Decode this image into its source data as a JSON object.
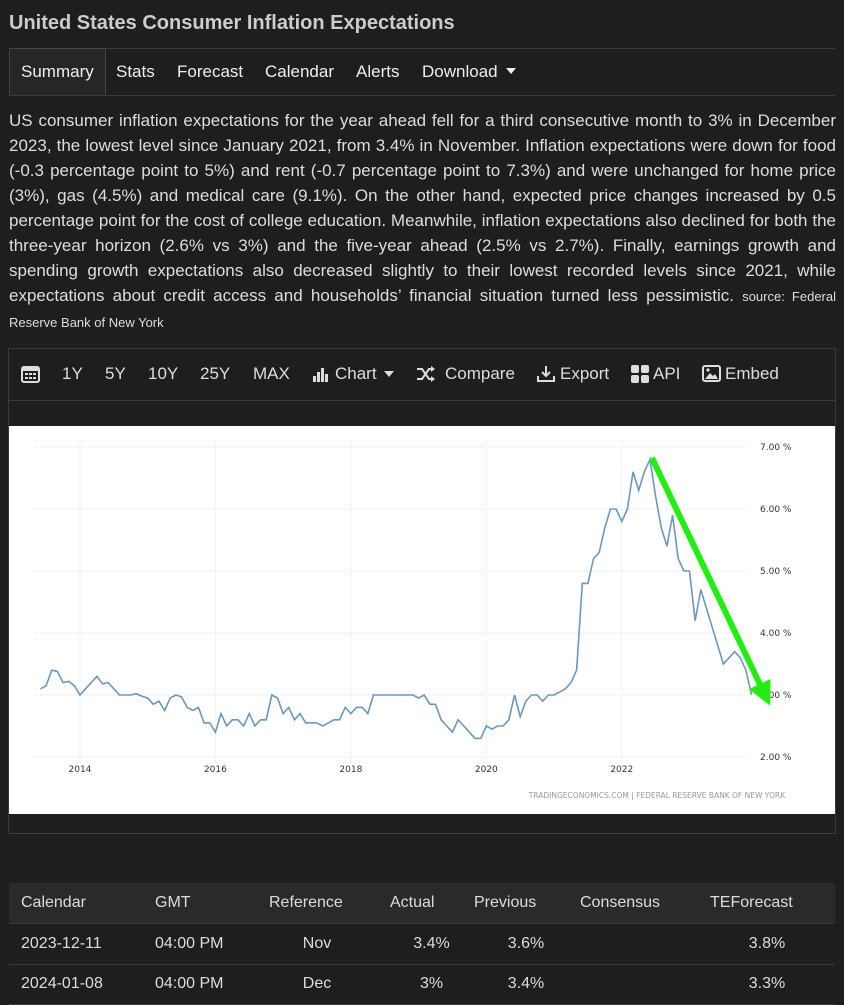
{
  "header": {
    "title": "United States Consumer Inflation Expectations"
  },
  "nav": [
    "Summary",
    "Stats",
    "Forecast",
    "Calendar",
    "Alerts",
    "Download"
  ],
  "description": {
    "text": "US consumer inflation expectations for the year ahead fell for a third consecutive month to 3% in December 2023, the lowest level since January 2021, from 3.4% in November. Inflation expectations were down for food (-0.3 percentage point to 5%) and rent (-0.7 percentage point to 7.3%) and were unchanged for home price (3%), gas (4.5%) and medical care (9.1%). On the other hand, expected price changes increased by 0.5 percentage point for the cost of college education. Meanwhile, inflation expectations also declined for both the three-year horizon (2.6% vs 3%) and the five-year ahead (2.5% vs 2.7%). Finally, earnings growth and spending growth expectations also decreased slightly to their lowest recorded levels since 2021, while expectations about credit access and households’ financial situation turned less pessimistic.",
    "source": "source: Federal Reserve Bank of New York"
  },
  "toolbar": [
    "1Y",
    "5Y",
    "10Y",
    "25Y",
    "MAX",
    "Chart",
    "Compare",
    "Export",
    "API",
    "Embed"
  ],
  "chart_data": {
    "type": "line",
    "watermark": "TRADINGECONOMICS.COM  |  FEDERAL RESERVE BANK OF NEW YORK",
    "color": "#6a97c0",
    "grid": true,
    "xlim": [
      2013.1,
      2024.1
    ],
    "xticks": [
      2014,
      2016,
      2018,
      2020,
      2022
    ],
    "ylim": [
      1.8,
      7.2
    ],
    "yticks": [
      {
        "value": 2,
        "label": "2.00 %"
      },
      {
        "value": 3,
        "label": "3.00 %"
      },
      {
        "value": 4,
        "label": "4.00 %"
      },
      {
        "value": 5,
        "label": "5.00 %"
      },
      {
        "value": 6,
        "label": "6.00 %"
      },
      {
        "value": 7,
        "label": "7.00 %"
      }
    ],
    "x": [
      2013.417,
      2013.5,
      2013.583,
      2013.667,
      2013.75,
      2013.833,
      2013.917,
      2014,
      2014.083,
      2014.167,
      2014.25,
      2014.333,
      2014.417,
      2014.5,
      2014.583,
      2014.667,
      2014.75,
      2014.833,
      2014.917,
      2015,
      2015.083,
      2015.167,
      2015.25,
      2015.333,
      2015.417,
      2015.5,
      2015.583,
      2015.667,
      2015.75,
      2015.833,
      2015.917,
      2016,
      2016.083,
      2016.167,
      2016.25,
      2016.333,
      2016.417,
      2016.5,
      2016.583,
      2016.667,
      2016.75,
      2016.833,
      2016.917,
      2017,
      2017.083,
      2017.167,
      2017.25,
      2017.333,
      2017.417,
      2017.5,
      2017.583,
      2017.667,
      2017.75,
      2017.833,
      2017.917,
      2018,
      2018.083,
      2018.167,
      2018.25,
      2018.333,
      2018.417,
      2018.5,
      2018.583,
      2018.667,
      2018.75,
      2018.833,
      2018.917,
      2019,
      2019.083,
      2019.167,
      2019.25,
      2019.333,
      2019.417,
      2019.5,
      2019.583,
      2019.667,
      2019.75,
      2019.833,
      2019.917,
      2020,
      2020.083,
      2020.167,
      2020.25,
      2020.333,
      2020.417,
      2020.5,
      2020.583,
      2020.667,
      2020.75,
      2020.833,
      2020.917,
      2021,
      2021.083,
      2021.167,
      2021.25,
      2021.333,
      2021.417,
      2021.5,
      2021.583,
      2021.667,
      2021.75,
      2021.833,
      2021.917,
      2022,
      2022.083,
      2022.167,
      2022.25,
      2022.333,
      2022.417,
      2022.5,
      2022.583,
      2022.667,
      2022.75,
      2022.833,
      2022.917,
      2023,
      2023.083,
      2023.167,
      2023.25,
      2023.333,
      2023.417,
      2023.5,
      2023.583,
      2023.667,
      2023.75,
      2023.833,
      2023.917
    ],
    "values": [
      3.1,
      3.15,
      3.4,
      3.38,
      3.2,
      3.22,
      3.15,
      3.0,
      3.1,
      3.2,
      3.3,
      3.18,
      3.2,
      3.1,
      3.0,
      3.0,
      3.0,
      3.02,
      2.98,
      2.95,
      2.85,
      2.9,
      2.75,
      2.95,
      3.0,
      2.97,
      2.8,
      2.75,
      2.8,
      2.55,
      2.55,
      2.4,
      2.7,
      2.5,
      2.6,
      2.6,
      2.5,
      2.7,
      2.5,
      2.6,
      2.6,
      3.0,
      2.95,
      2.7,
      2.8,
      2.6,
      2.7,
      2.55,
      2.55,
      2.55,
      2.5,
      2.55,
      2.6,
      2.6,
      2.8,
      2.7,
      2.8,
      2.8,
      2.7,
      3.0,
      3.0,
      3.0,
      3.0,
      3.0,
      3.0,
      3.0,
      3.0,
      2.95,
      3.0,
      2.85,
      2.85,
      2.6,
      2.5,
      2.4,
      2.6,
      2.5,
      2.4,
      2.3,
      2.3,
      2.5,
      2.45,
      2.5,
      2.5,
      2.6,
      3.0,
      2.65,
      2.9,
      3.0,
      3.0,
      2.9,
      3.0,
      3.0,
      3.05,
      3.1,
      3.2,
      3.4,
      4.8,
      4.8,
      5.2,
      5.3,
      5.7,
      6.0,
      6.0,
      5.8,
      6.0,
      6.6,
      6.3,
      6.6,
      6.8,
      6.2,
      5.7,
      5.4,
      5.9,
      5.2,
      5.0,
      5.0,
      4.2,
      4.7,
      4.4,
      4.1,
      3.8,
      3.5,
      3.6,
      3.7,
      3.6,
      3.4,
      3.0
    ]
  },
  "table": {
    "header": [
      "Calendar",
      "GMT",
      "Reference",
      "Actual",
      "Previous",
      "Consensus",
      "TEForecast"
    ],
    "rows": [
      {
        "calendar": "2023-12-11",
        "gmt": "04:00 PM",
        "reference": "Nov",
        "actual": "3.4%",
        "previous": "3.6%",
        "teforecast": "3.8%"
      },
      {
        "calendar": "2024-01-08",
        "gmt": "04:00 PM",
        "reference": "Dec",
        "actual": "3%",
        "previous": "3.4%",
        "teforecast": "3.3%"
      }
    ]
  }
}
